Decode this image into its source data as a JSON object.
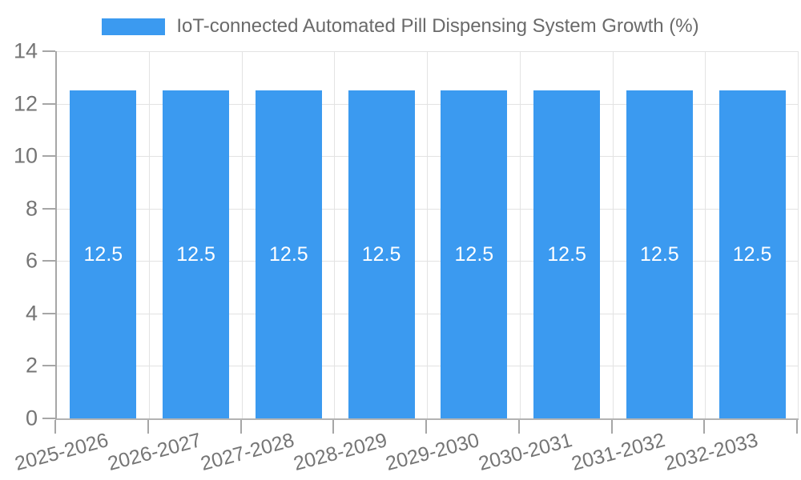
{
  "legend": {
    "label": "IoT-connected Automated Pill Dispensing System Growth (%)",
    "swatch_color": "#3b9af0"
  },
  "chart_data": {
    "type": "bar",
    "title": "IoT-connected Automated Pill Dispensing System Growth (%)",
    "categories": [
      "2025-2026",
      "2026-2027",
      "2027-2028",
      "2028-2029",
      "2029-2030",
      "2030-2031",
      "2031-2032",
      "2032-2033"
    ],
    "series": [
      {
        "name": "IoT-connected Automated Pill Dispensing System Growth (%)",
        "values": [
          12.5,
          12.5,
          12.5,
          12.5,
          12.5,
          12.5,
          12.5,
          12.5
        ]
      }
    ],
    "value_labels": [
      "12.5",
      "12.5",
      "12.5",
      "12.5",
      "12.5",
      "12.5",
      "12.5",
      "12.5"
    ],
    "xlabel": "",
    "ylabel": "",
    "ylim": [
      0,
      14
    ],
    "yticks": [
      0,
      2,
      4,
      6,
      8,
      10,
      12,
      14
    ],
    "grid": true,
    "legend_position": "top-center",
    "bar_color": "#3b9af0",
    "value_label_color": "#ffffff",
    "tick_label_color": "#757575",
    "grid_color": "#e3e3e3",
    "axis_color": "#a6a6a6"
  }
}
